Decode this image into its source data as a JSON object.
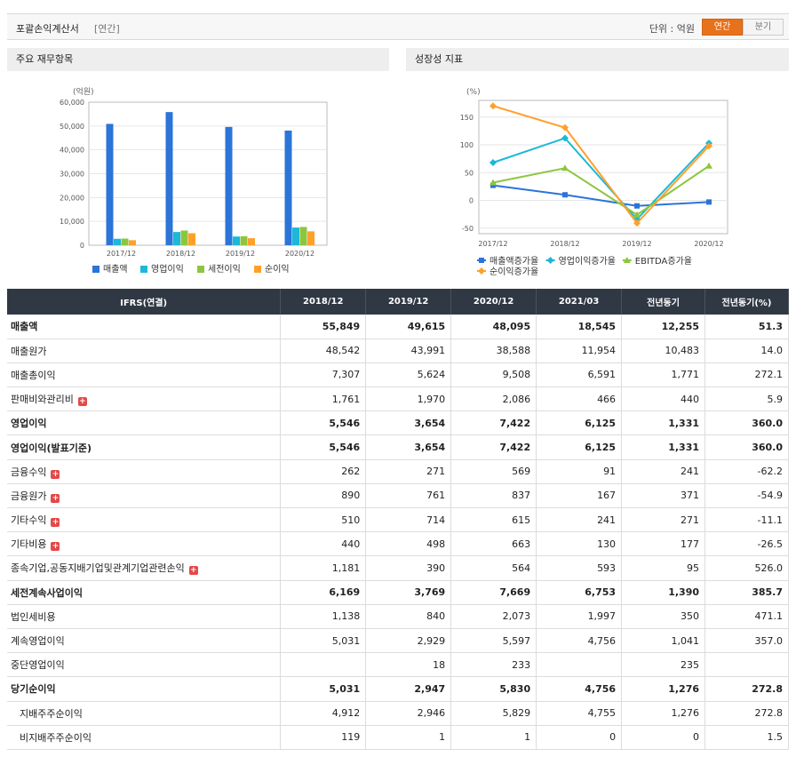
{
  "header": {
    "title": "포괄손익계산서",
    "subtitle": "[연간]",
    "unit_label": "단위 : 억원",
    "toggle_annual": "연간",
    "toggle_quarter": "분기"
  },
  "panels": {
    "left_title": "주요 재무항목",
    "right_title": "성장성 지표"
  },
  "colors": {
    "accent": "#e8711b",
    "header_bg": "#303844",
    "negative": "#e0202a"
  },
  "chart_data": [
    {
      "type": "bar",
      "title": "",
      "ylabel": "(억원)",
      "ylim": [
        0,
        60000
      ],
      "yticks": [
        "0",
        "10,000",
        "20,000",
        "30,000",
        "40,000",
        "50,000",
        "60,000"
      ],
      "yticks_values": [
        0,
        10000,
        20000,
        30000,
        40000,
        50000,
        60000
      ],
      "categories": [
        "2017/12",
        "2018/12",
        "2019/12",
        "2020/12"
      ],
      "legend_position": "bottom",
      "grid": true,
      "series": [
        {
          "name": "매출액",
          "color": "#2b74d8",
          "values": [
            50900,
            55849,
            49615,
            48095
          ]
        },
        {
          "name": "영업이익",
          "color": "#1bb8d8",
          "values": [
            2700,
            5546,
            3654,
            7422
          ]
        },
        {
          "name": "세전이익",
          "color": "#8cc63f",
          "values": [
            2800,
            6169,
            3769,
            7669
          ]
        },
        {
          "name": "순이익",
          "color": "#ffa02a",
          "values": [
            2100,
            5031,
            2947,
            5830
          ]
        }
      ]
    },
    {
      "type": "line",
      "title": "",
      "ylabel": "(%)",
      "ylim": [
        -60,
        180
      ],
      "yticks": [
        "-50",
        "0",
        "50",
        "100",
        "150"
      ],
      "yticks_values": [
        -50,
        0,
        50,
        100,
        150
      ],
      "categories": [
        "2017/12",
        "2018/12",
        "2019/12",
        "2020/12"
      ],
      "legend_position": "bottom",
      "grid": true,
      "series": [
        {
          "name": "매출액증가율",
          "color": "#2b74d8",
          "marker": "square",
          "values": [
            27,
            10,
            -10,
            -3
          ]
        },
        {
          "name": "영업이익증가율",
          "color": "#1bb8d8",
          "marker": "diamond",
          "values": [
            68,
            112,
            -34,
            103
          ]
        },
        {
          "name": "EBITDA증가율",
          "color": "#8cc63f",
          "marker": "triangle",
          "values": [
            32,
            58,
            -26,
            62
          ]
        },
        {
          "name": "순이익증가율",
          "color": "#ffa02a",
          "marker": "diamond",
          "values": [
            170,
            131,
            -41,
            98
          ]
        }
      ]
    }
  ],
  "table": {
    "columns": [
      "IFRS(연결)",
      "2018/12",
      "2019/12",
      "2020/12",
      "2021/03",
      "전년동기",
      "전년동기(%)"
    ],
    "rows": [
      {
        "label": "매출액",
        "values": [
          "55,849",
          "49,615",
          "48,095",
          "18,545",
          "12,255",
          "51.3"
        ],
        "bold": true
      },
      {
        "label": "매출원가",
        "values": [
          "48,542",
          "43,991",
          "38,588",
          "11,954",
          "10,483",
          "14.0"
        ]
      },
      {
        "label": "매출총이익",
        "values": [
          "7,307",
          "5,624",
          "9,508",
          "6,591",
          "1,771",
          "272.1"
        ]
      },
      {
        "label": "판매비와관리비",
        "values": [
          "1,761",
          "1,970",
          "2,086",
          "466",
          "440",
          "5.9"
        ],
        "expand": true
      },
      {
        "label": "영업이익",
        "values": [
          "5,546",
          "3,654",
          "7,422",
          "6,125",
          "1,331",
          "360.0"
        ],
        "bold": true
      },
      {
        "label": "영업이익(발표기준)",
        "values": [
          "5,546",
          "3,654",
          "7,422",
          "6,125",
          "1,331",
          "360.0"
        ],
        "bold": true
      },
      {
        "label": "금융수익",
        "values": [
          "262",
          "271",
          "569",
          "91",
          "241",
          "-62.2"
        ],
        "expand": true,
        "neg": true
      },
      {
        "label": "금융원가",
        "values": [
          "890",
          "761",
          "837",
          "167",
          "371",
          "-54.9"
        ],
        "expand": true,
        "neg": true
      },
      {
        "label": "기타수익",
        "values": [
          "510",
          "714",
          "615",
          "241",
          "271",
          "-11.1"
        ],
        "expand": true,
        "neg": true
      },
      {
        "label": "기타비용",
        "values": [
          "440",
          "498",
          "663",
          "130",
          "177",
          "-26.5"
        ],
        "expand": true,
        "neg": true
      },
      {
        "label": "종속기업,공동지배기업및관계기업관련손익",
        "values": [
          "1,181",
          "390",
          "564",
          "593",
          "95",
          "526.0"
        ],
        "expand": true
      },
      {
        "label": "세전계속사업이익",
        "values": [
          "6,169",
          "3,769",
          "7,669",
          "6,753",
          "1,390",
          "385.7"
        ],
        "bold": true
      },
      {
        "label": "법인세비용",
        "values": [
          "1,138",
          "840",
          "2,073",
          "1,997",
          "350",
          "471.1"
        ]
      },
      {
        "label": "계속영업이익",
        "values": [
          "5,031",
          "2,929",
          "5,597",
          "4,756",
          "1,041",
          "357.0"
        ]
      },
      {
        "label": "중단영업이익",
        "values": [
          "",
          "18",
          "233",
          "",
          "235",
          ""
        ]
      },
      {
        "label": "당기순이익",
        "values": [
          "5,031",
          "2,947",
          "5,830",
          "4,756",
          "1,276",
          "272.8"
        ],
        "bold": true
      },
      {
        "label": "지배주주순이익",
        "values": [
          "4,912",
          "2,946",
          "5,829",
          "4,755",
          "1,276",
          "272.8"
        ],
        "indent": true
      },
      {
        "label": "비지배주주순이익",
        "values": [
          "119",
          "1",
          "1",
          "0",
          "0",
          "1.5"
        ],
        "indent": true
      }
    ]
  }
}
